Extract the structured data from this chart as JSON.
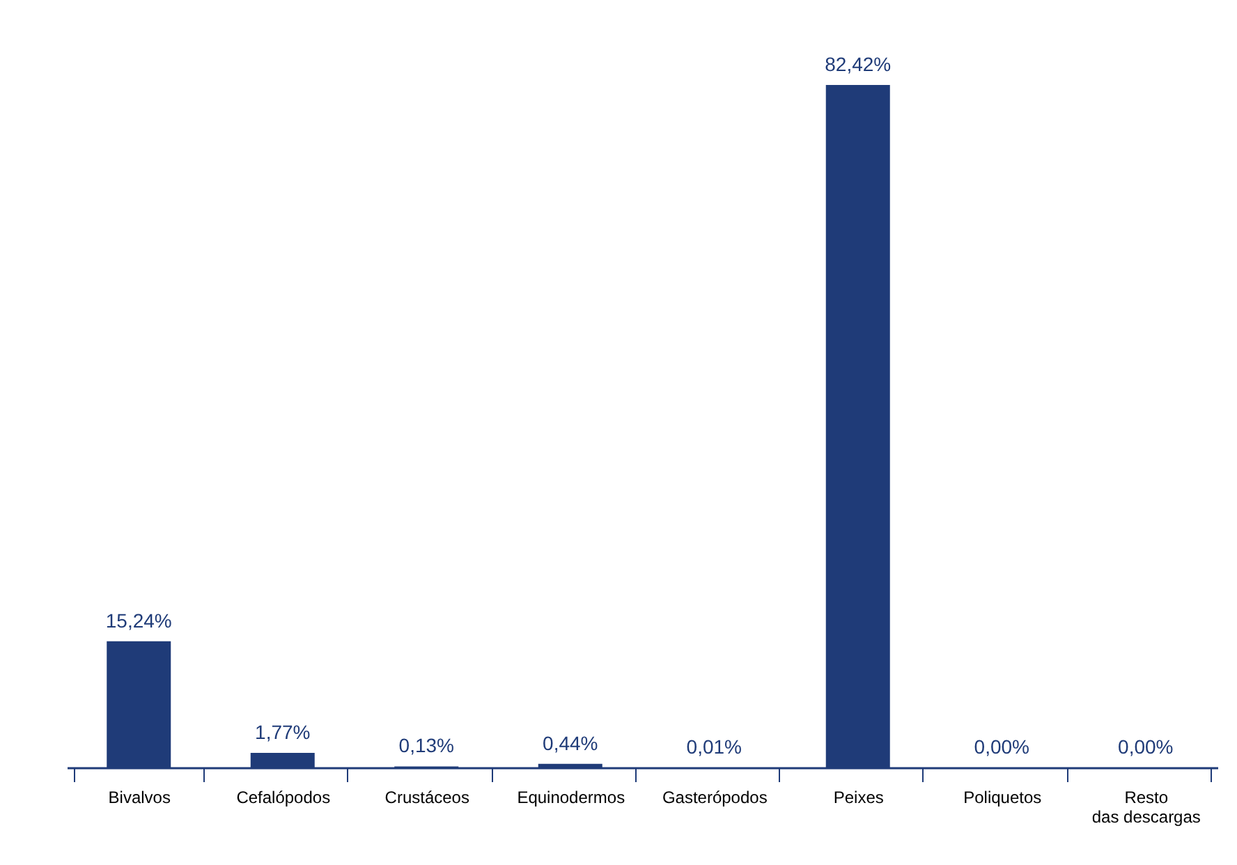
{
  "chart_data": {
    "type": "bar",
    "categories": [
      "Bivalvos",
      "Cefalópodos",
      "Crustáceos",
      "Equinodermos",
      "Gasterópodos",
      "Peixes",
      "Poliquetos",
      "Resto das descargas"
    ],
    "values": [
      15.24,
      1.77,
      0.13,
      0.44,
      0.01,
      82.42,
      0.0,
      0.0
    ],
    "value_labels": [
      "15,24%",
      "1,77%",
      "0,13%",
      "0,44%",
      "0,01%",
      "82,42%",
      "0,00%",
      "0,00%"
    ],
    "color": "#1f3b78"
  }
}
